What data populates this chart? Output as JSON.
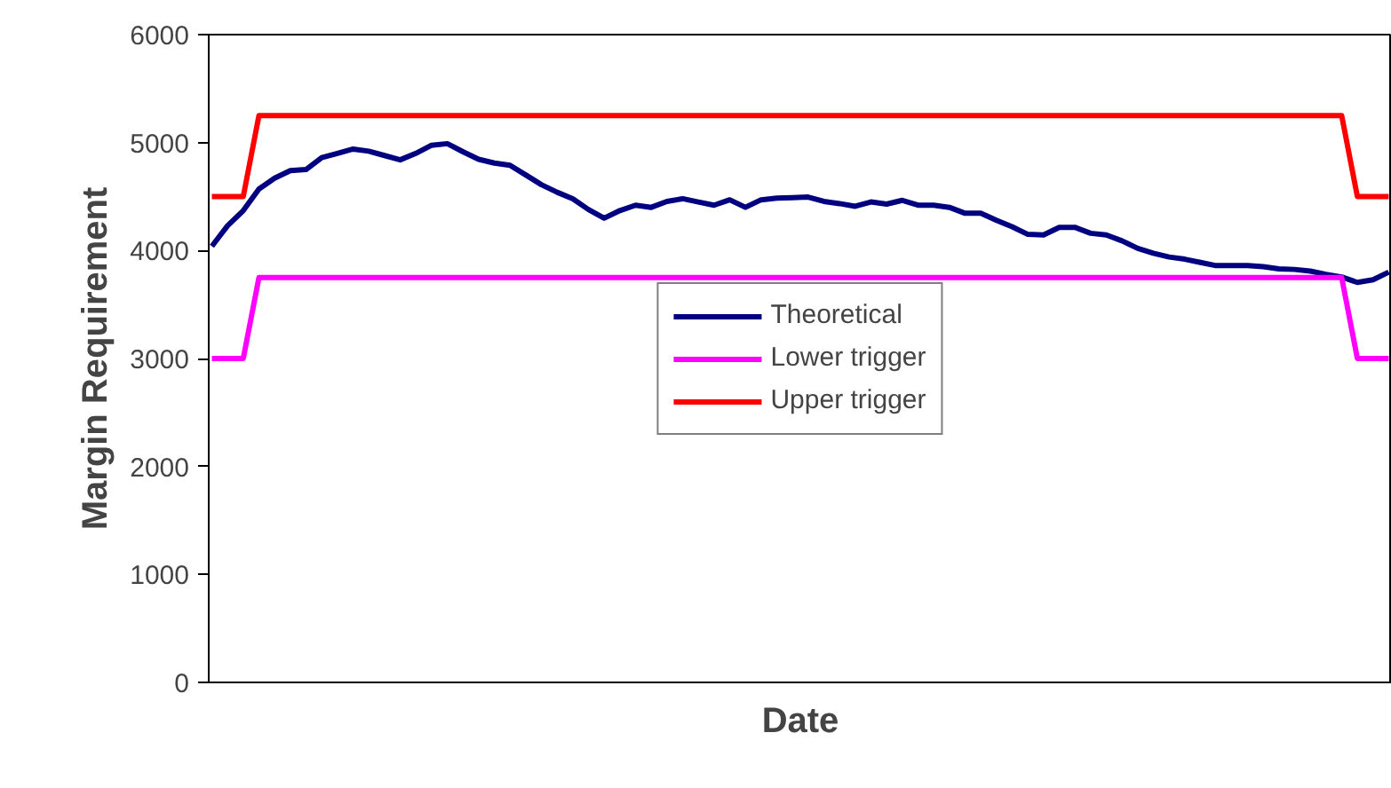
{
  "chart_data": {
    "type": "line",
    "xlabel": "Date",
    "ylabel": "Margin Requirement",
    "categories": [
      null,
      null,
      null,
      null,
      null,
      null,
      null,
      null,
      null,
      null,
      null,
      null,
      null,
      null,
      null,
      null,
      null,
      null,
      null,
      null,
      null,
      null,
      null,
      null,
      null,
      null,
      null,
      null,
      null,
      null,
      null,
      null,
      null,
      null,
      null,
      null,
      null,
      null,
      null,
      null,
      null,
      null,
      null,
      null,
      null,
      null,
      null,
      null,
      null,
      null,
      null,
      null,
      null,
      null,
      null,
      null,
      null,
      null,
      null,
      null,
      null,
      null,
      null,
      null,
      null,
      null,
      null,
      null,
      null,
      null,
      null,
      null,
      null,
      null,
      null,
      null
    ],
    "series": [
      {
        "name": "Theoretical",
        "color": "#000080",
        "values": [
          4040,
          4230,
          4370,
          4570,
          4670,
          4740,
          4750,
          4860,
          4900,
          4940,
          4920,
          4880,
          4840,
          4900,
          4975,
          4990,
          4915,
          4845,
          4810,
          4790,
          4700,
          4610,
          4540,
          4480,
          4380,
          4300,
          4370,
          4420,
          4400,
          4455,
          4480,
          4450,
          4420,
          4470,
          4400,
          4470,
          4485,
          4490,
          4495,
          4455,
          4435,
          4410,
          4450,
          4430,
          4465,
          4420,
          4420,
          4400,
          4345,
          4345,
          4280,
          4220,
          4150,
          4145,
          4215,
          4215,
          4160,
          4145,
          4090,
          4020,
          3975,
          3940,
          3920,
          3890,
          3860,
          3860,
          3860,
          3850,
          3830,
          3825,
          3810,
          3780,
          3755,
          3705,
          3730,
          3800
        ]
      },
      {
        "name": "Lower trigger",
        "color": "#ff00ff",
        "values": [
          3000,
          3000,
          3000,
          3750,
          3750,
          3750,
          3750,
          3750,
          3750,
          3750,
          3750,
          3750,
          3750,
          3750,
          3750,
          3750,
          3750,
          3750,
          3750,
          3750,
          3750,
          3750,
          3750,
          3750,
          3750,
          3750,
          3750,
          3750,
          3750,
          3750,
          3750,
          3750,
          3750,
          3750,
          3750,
          3750,
          3750,
          3750,
          3750,
          3750,
          3750,
          3750,
          3750,
          3750,
          3750,
          3750,
          3750,
          3750,
          3750,
          3750,
          3750,
          3750,
          3750,
          3750,
          3750,
          3750,
          3750,
          3750,
          3750,
          3750,
          3750,
          3750,
          3750,
          3750,
          3750,
          3750,
          3750,
          3750,
          3750,
          3750,
          3750,
          3750,
          3750,
          3000,
          3000,
          3000
        ]
      },
      {
        "name": "Upper trigger",
        "color": "#ff0000",
        "values": [
          4500,
          4500,
          4500,
          5250,
          5250,
          5250,
          5250,
          5250,
          5250,
          5250,
          5250,
          5250,
          5250,
          5250,
          5250,
          5250,
          5250,
          5250,
          5250,
          5250,
          5250,
          5250,
          5250,
          5250,
          5250,
          5250,
          5250,
          5250,
          5250,
          5250,
          5250,
          5250,
          5250,
          5250,
          5250,
          5250,
          5250,
          5250,
          5250,
          5250,
          5250,
          5250,
          5250,
          5250,
          5250,
          5250,
          5250,
          5250,
          5250,
          5250,
          5250,
          5250,
          5250,
          5250,
          5250,
          5250,
          5250,
          5250,
          5250,
          5250,
          5250,
          5250,
          5250,
          5250,
          5250,
          5250,
          5250,
          5250,
          5250,
          5250,
          5250,
          5250,
          5250,
          4500,
          4500,
          4500
        ]
      }
    ],
    "ylim": [
      0,
      6000
    ],
    "yticks": [
      0,
      1000,
      2000,
      3000,
      4000,
      5000,
      6000
    ],
    "grid": false,
    "legend": "center",
    "marker": "none",
    "line_style": "solid"
  }
}
